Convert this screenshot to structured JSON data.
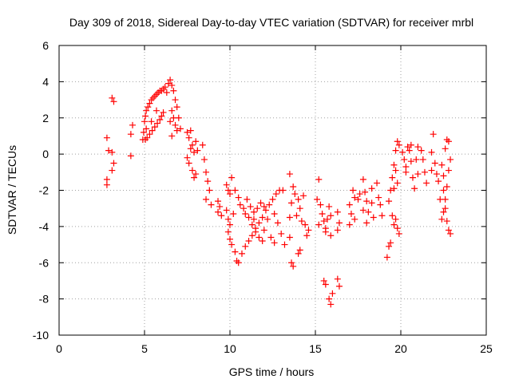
{
  "chart_data": {
    "type": "scatter",
    "title": "Day 309 of 2018, Sidereal Day-to-day VTEC variation (SDTVAR) for receiver mrbl",
    "xlabel": "GPS time / hours",
    "ylabel": "SDTVAR / TECUs",
    "xlim": [
      0,
      25
    ],
    "ylim": [
      -10,
      6
    ],
    "xticks": [
      "0",
      "5",
      "10",
      "15",
      "20",
      "25"
    ],
    "yticks": [
      "-10",
      "-8",
      "-6",
      "-4",
      "-2",
      "0",
      "2",
      "4",
      "6"
    ],
    "grid": true,
    "marker": "+",
    "marker_color": "#ff0000",
    "series": [
      {
        "name": "mrbl",
        "points": [
          [
            2.8,
            0.9
          ],
          [
            2.8,
            -1.4
          ],
          [
            2.9,
            0.2
          ],
          [
            2.8,
            -1.7
          ],
          [
            3.1,
            3.1
          ],
          [
            3.2,
            2.9
          ],
          [
            3.1,
            0.1
          ],
          [
            3.2,
            -0.5
          ],
          [
            3.1,
            -0.9
          ],
          [
            4.2,
            1.1
          ],
          [
            4.3,
            1.6
          ],
          [
            4.2,
            -0.1
          ],
          [
            4.9,
            0.8
          ],
          [
            4.95,
            1.2
          ],
          [
            5.0,
            1.8
          ],
          [
            5.05,
            2.1
          ],
          [
            5.1,
            2.4
          ],
          [
            5.2,
            2.6
          ],
          [
            5.3,
            2.8
          ],
          [
            5.4,
            3.0
          ],
          [
            5.5,
            3.1
          ],
          [
            5.6,
            3.2
          ],
          [
            5.7,
            3.3
          ],
          [
            5.8,
            3.4
          ],
          [
            5.9,
            3.5
          ],
          [
            6.0,
            3.5
          ],
          [
            6.1,
            3.6
          ],
          [
            6.2,
            3.7
          ],
          [
            6.3,
            3.4
          ],
          [
            5.05,
            0.8
          ],
          [
            5.15,
            0.9
          ],
          [
            5.3,
            1.1
          ],
          [
            5.45,
            1.3
          ],
          [
            5.6,
            1.5
          ],
          [
            5.75,
            1.7
          ],
          [
            5.9,
            1.9
          ],
          [
            6.0,
            2.1
          ],
          [
            6.1,
            2.3
          ],
          [
            5.1,
            1.4
          ],
          [
            5.4,
            1.8
          ],
          [
            5.7,
            2.4
          ],
          [
            6.4,
            3.9
          ],
          [
            6.5,
            4.1
          ],
          [
            6.6,
            3.8
          ],
          [
            6.7,
            3.5
          ],
          [
            6.8,
            3.0
          ],
          [
            6.9,
            2.6
          ],
          [
            7.0,
            2.0
          ],
          [
            7.1,
            1.4
          ],
          [
            6.6,
            2.4
          ],
          [
            6.7,
            2.0
          ],
          [
            6.8,
            1.6
          ],
          [
            6.9,
            1.3
          ],
          [
            6.5,
            1.8
          ],
          [
            6.6,
            1.0
          ],
          [
            7.5,
            1.2
          ],
          [
            7.6,
            0.9
          ],
          [
            7.7,
            1.3
          ],
          [
            7.8,
            0.5
          ],
          [
            7.9,
            0.1
          ],
          [
            7.6,
            -0.5
          ],
          [
            7.8,
            -0.9
          ],
          [
            8.0,
            -1.1
          ],
          [
            7.7,
            0.3
          ],
          [
            8.0,
            0.7
          ],
          [
            8.1,
            0.2
          ],
          [
            7.5,
            -0.2
          ],
          [
            7.9,
            -1.3
          ],
          [
            8.4,
            0.5
          ],
          [
            8.5,
            -0.3
          ],
          [
            8.6,
            -1.0
          ],
          [
            8.7,
            -1.5
          ],
          [
            8.8,
            -2.0
          ],
          [
            8.6,
            -2.5
          ],
          [
            8.9,
            -2.8
          ],
          [
            9.3,
            -3.2
          ],
          [
            9.4,
            -2.9
          ],
          [
            9.5,
            -3.4
          ],
          [
            9.3,
            -2.6
          ],
          [
            9.8,
            -1.7
          ],
          [
            9.9,
            -2.0
          ],
          [
            10.0,
            -2.2
          ],
          [
            10.1,
            -1.3
          ],
          [
            10.3,
            -2.0
          ],
          [
            10.5,
            -2.4
          ],
          [
            9.8,
            -3.1
          ],
          [
            9.9,
            -3.6
          ],
          [
            10.0,
            -3.9
          ],
          [
            10.2,
            -3.3
          ],
          [
            9.9,
            -4.3
          ],
          [
            10.0,
            -4.7
          ],
          [
            10.1,
            -5.0
          ],
          [
            10.3,
            -5.4
          ],
          [
            10.4,
            -5.9
          ],
          [
            10.5,
            -6.0
          ],
          [
            10.7,
            -5.5
          ],
          [
            10.9,
            -5.1
          ],
          [
            11.1,
            -4.8
          ],
          [
            11.3,
            -4.5
          ],
          [
            11.5,
            -4.1
          ],
          [
            11.7,
            -3.8
          ],
          [
            11.9,
            -3.5
          ],
          [
            12.1,
            -3.1
          ],
          [
            12.3,
            -2.8
          ],
          [
            12.5,
            -2.5
          ],
          [
            12.7,
            -2.2
          ],
          [
            12.9,
            -2.0
          ],
          [
            13.1,
            -2.0
          ],
          [
            11.0,
            -2.5
          ],
          [
            11.2,
            -2.9
          ],
          [
            11.4,
            -3.2
          ],
          [
            11.6,
            -3.0
          ],
          [
            11.8,
            -2.7
          ],
          [
            12.0,
            -2.9
          ],
          [
            11.1,
            -3.5
          ],
          [
            11.3,
            -3.9
          ],
          [
            11.5,
            -4.3
          ],
          [
            11.7,
            -4.6
          ],
          [
            11.9,
            -4.8
          ],
          [
            10.6,
            -2.8
          ],
          [
            10.8,
            -3.0
          ],
          [
            12.6,
            -3.3
          ],
          [
            12.8,
            -3.8
          ],
          [
            13.0,
            -4.4
          ],
          [
            13.2,
            -5.0
          ],
          [
            12.4,
            -4.6
          ],
          [
            12.6,
            -4.9
          ],
          [
            12.0,
            -4.2
          ],
          [
            12.2,
            -3.6
          ],
          [
            10.9,
            -3.3
          ],
          [
            11.4,
            -3.6
          ],
          [
            13.5,
            -1.1
          ],
          [
            13.7,
            -1.8
          ],
          [
            13.8,
            -2.2
          ],
          [
            14.0,
            -2.5
          ],
          [
            14.1,
            -3.0
          ],
          [
            13.6,
            -2.7
          ],
          [
            13.9,
            -3.4
          ],
          [
            14.2,
            -3.7
          ],
          [
            14.3,
            -2.3
          ],
          [
            14.4,
            -3.9
          ],
          [
            14.6,
            -4.2
          ],
          [
            13.5,
            -3.5
          ],
          [
            13.6,
            -6.0
          ],
          [
            13.7,
            -6.2
          ],
          [
            14.0,
            -5.5
          ],
          [
            14.1,
            -5.3
          ],
          [
            13.5,
            -4.6
          ],
          [
            14.5,
            -4.5
          ],
          [
            15.2,
            -1.4
          ],
          [
            15.1,
            -2.5
          ],
          [
            15.3,
            -2.8
          ],
          [
            15.4,
            -3.3
          ],
          [
            15.5,
            -3.7
          ],
          [
            15.6,
            -4.1
          ],
          [
            15.7,
            -3.6
          ],
          [
            15.8,
            -2.9
          ],
          [
            15.9,
            -3.4
          ],
          [
            15.2,
            -3.9
          ],
          [
            15.6,
            -4.3
          ],
          [
            15.9,
            -4.5
          ],
          [
            15.5,
            -7.0
          ],
          [
            15.6,
            -7.2
          ],
          [
            15.8,
            -8.0
          ],
          [
            15.9,
            -8.3
          ],
          [
            16.0,
            -7.7
          ],
          [
            16.3,
            -3.2
          ],
          [
            16.4,
            -3.8
          ],
          [
            16.3,
            -6.9
          ],
          [
            16.4,
            -7.3
          ],
          [
            16.3,
            -4.2
          ],
          [
            17.0,
            -2.8
          ],
          [
            17.1,
            -3.3
          ],
          [
            17.2,
            -2.0
          ],
          [
            17.3,
            -2.4
          ],
          [
            17.0,
            -3.9
          ],
          [
            17.3,
            -3.6
          ],
          [
            17.5,
            -2.5
          ],
          [
            17.6,
            -2.2
          ],
          [
            17.8,
            -1.4
          ],
          [
            17.9,
            -2.1
          ],
          [
            18.0,
            -2.6
          ],
          [
            18.1,
            -3.2
          ],
          [
            18.3,
            -1.9
          ],
          [
            18.4,
            -3.5
          ],
          [
            17.8,
            -3.1
          ],
          [
            18.0,
            -3.8
          ],
          [
            18.6,
            -1.6
          ],
          [
            18.7,
            -2.4
          ],
          [
            18.9,
            -3.4
          ],
          [
            18.8,
            -2.8
          ],
          [
            18.3,
            -2.7
          ],
          [
            19.3,
            -2.6
          ],
          [
            19.4,
            -2.0
          ],
          [
            19.5,
            -1.3
          ],
          [
            19.6,
            -0.6
          ],
          [
            19.7,
            0.2
          ],
          [
            19.8,
            0.7
          ],
          [
            19.9,
            0.5
          ],
          [
            19.7,
            -0.9
          ],
          [
            19.8,
            -1.6
          ],
          [
            19.6,
            -1.9
          ],
          [
            19.5,
            -3.4
          ],
          [
            19.6,
            -3.9
          ],
          [
            19.8,
            -4.1
          ],
          [
            19.9,
            -4.4
          ],
          [
            19.7,
            -3.6
          ],
          [
            19.3,
            -5.1
          ],
          [
            19.2,
            -5.7
          ],
          [
            19.4,
            -4.9
          ],
          [
            20.1,
            0.1
          ],
          [
            20.2,
            -0.3
          ],
          [
            20.3,
            -0.7
          ],
          [
            20.4,
            0.4
          ],
          [
            20.5,
            0.2
          ],
          [
            20.6,
            -0.4
          ],
          [
            20.7,
            -1.3
          ],
          [
            20.8,
            -1.9
          ],
          [
            20.6,
            0.5
          ],
          [
            20.9,
            -0.3
          ],
          [
            21.0,
            -1.1
          ],
          [
            21.2,
            0.2
          ],
          [
            21.3,
            -0.3
          ],
          [
            21.4,
            -1.0
          ],
          [
            21.5,
            -1.6
          ],
          [
            21.0,
            0.4
          ],
          [
            20.3,
            -1.0
          ],
          [
            21.8,
            0.1
          ],
          [
            21.9,
            1.1
          ],
          [
            22.0,
            -0.5
          ],
          [
            22.1,
            -1.1
          ],
          [
            21.8,
            -0.9
          ],
          [
            22.2,
            -1.5
          ],
          [
            22.3,
            -2.5
          ],
          [
            22.4,
            -3.6
          ],
          [
            22.5,
            -2.0
          ],
          [
            22.6,
            -3.0
          ],
          [
            22.5,
            -1.2
          ],
          [
            22.4,
            -0.6
          ],
          [
            22.6,
            -2.5
          ],
          [
            22.7,
            -3.7
          ],
          [
            22.8,
            -4.2
          ],
          [
            22.9,
            -4.4
          ],
          [
            22.7,
            -1.8
          ],
          [
            22.8,
            -0.9
          ],
          [
            22.9,
            -0.3
          ],
          [
            22.7,
            0.8
          ],
          [
            22.8,
            0.7
          ],
          [
            22.6,
            0.3
          ],
          [
            22.5,
            -3.2
          ]
        ]
      }
    ]
  }
}
